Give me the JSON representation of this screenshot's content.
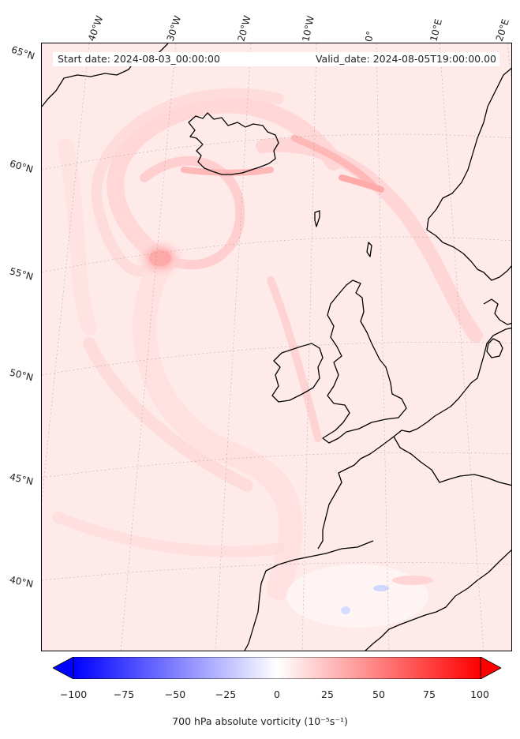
{
  "info": {
    "start_text": "Start date: 2024-08-03_00:00:00",
    "valid_text": "Valid_date: 2024-08-05T19:00:00.00"
  },
  "lon_labels": [
    "40°W",
    "30°W",
    "20°W",
    "10°W",
    "0°",
    "10°E",
    "20°E"
  ],
  "lat_labels": [
    "65°N",
    "60°N",
    "55°N",
    "50°N",
    "45°N",
    "40°N"
  ],
  "colorbar": {
    "min": -100,
    "max": 100,
    "ticks": [
      "−100",
      "−75",
      "−50",
      "−25",
      "0",
      "25",
      "50",
      "75",
      "100"
    ],
    "label": "700 hPa absolute vorticity (10⁻⁵s⁻¹)",
    "low_color": "#0000ff",
    "mid_color": "#ffffff",
    "high_color": "#ff0000",
    "extend": "both"
  },
  "colors": {
    "background_field": "#ffeaea",
    "coastline": "#000000"
  }
}
